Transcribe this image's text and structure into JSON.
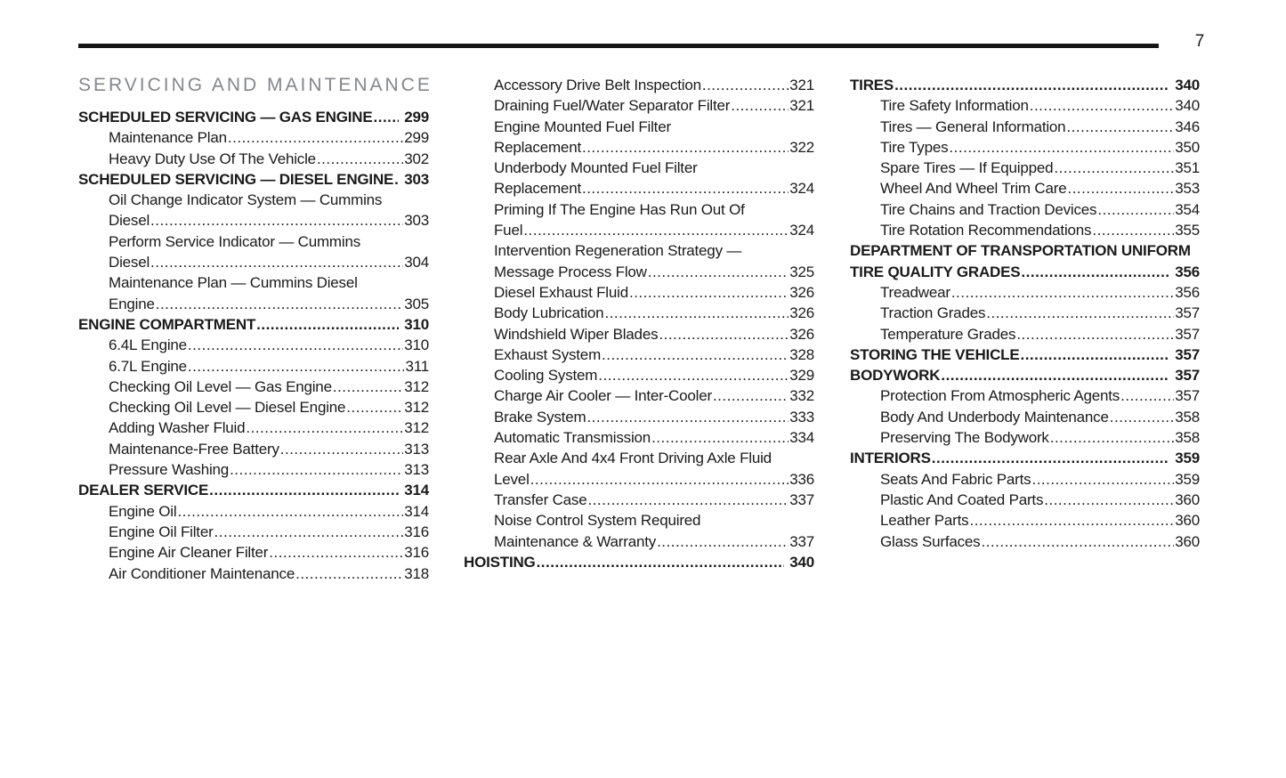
{
  "page": {
    "number": "7"
  },
  "section_title": "SERVICING AND MAINTENANCE",
  "colors": {
    "text": "#1a1a1a",
    "title_gray": "#85878a",
    "rule": "#161616",
    "background": "#ffffff"
  },
  "columns": [
    {
      "lines": [
        {
          "text": "SCHEDULED SERVICING — GAS ENGINE",
          "page": "299",
          "bold": true,
          "indent": false
        },
        {
          "text": "Maintenance Plan",
          "page": "299",
          "bold": false,
          "indent": true
        },
        {
          "text": "Heavy Duty Use Of The Vehicle",
          "page": "302",
          "bold": false,
          "indent": true
        },
        {
          "text": "SCHEDULED SERVICING — DIESEL ENGINE",
          "page": "303",
          "bold": true,
          "indent": false
        },
        {
          "text": "Oil Change Indicator System — Cummins",
          "page": "",
          "bold": false,
          "indent": true
        },
        {
          "text": "Diesel",
          "page": "303",
          "bold": false,
          "indent": true
        },
        {
          "text": "Perform Service Indicator — Cummins",
          "page": "",
          "bold": false,
          "indent": true
        },
        {
          "text": "Diesel",
          "page": "304",
          "bold": false,
          "indent": true
        },
        {
          "text": "Maintenance Plan — Cummins Diesel",
          "page": "",
          "bold": false,
          "indent": true
        },
        {
          "text": "Engine",
          "page": "305",
          "bold": false,
          "indent": true
        },
        {
          "text": "ENGINE COMPARTMENT",
          "page": "310",
          "bold": true,
          "indent": false
        },
        {
          "text": "6.4L Engine",
          "page": "310",
          "bold": false,
          "indent": true
        },
        {
          "text": "6.7L Engine",
          "page": "311",
          "bold": false,
          "indent": true
        },
        {
          "text": "Checking Oil Level — Gas Engine",
          "page": "312",
          "bold": false,
          "indent": true
        },
        {
          "text": "Checking Oil Level — Diesel Engine",
          "page": "312",
          "bold": false,
          "indent": true
        },
        {
          "text": "Adding Washer Fluid",
          "page": "312",
          "bold": false,
          "indent": true
        },
        {
          "text": "Maintenance-Free Battery",
          "page": "313",
          "bold": false,
          "indent": true
        },
        {
          "text": "Pressure Washing",
          "page": "313",
          "bold": false,
          "indent": true
        },
        {
          "text": "DEALER SERVICE",
          "page": "314",
          "bold": true,
          "indent": false
        },
        {
          "text": "Engine Oil",
          "page": "314",
          "bold": false,
          "indent": true
        },
        {
          "text": "Engine Oil Filter",
          "page": "316",
          "bold": false,
          "indent": true
        },
        {
          "text": "Engine Air Cleaner Filter",
          "page": "316",
          "bold": false,
          "indent": true
        },
        {
          "text": "Air Conditioner Maintenance",
          "page": "318",
          "bold": false,
          "indent": true
        }
      ]
    },
    {
      "lines": [
        {
          "text": "Accessory Drive Belt Inspection",
          "page": "321",
          "bold": false,
          "indent": true
        },
        {
          "text": "Draining Fuel/Water Separator Filter",
          "page": "321",
          "bold": false,
          "indent": true
        },
        {
          "text": "Engine Mounted Fuel Filter",
          "page": "",
          "bold": false,
          "indent": true
        },
        {
          "text": "Replacement",
          "page": "322",
          "bold": false,
          "indent": true
        },
        {
          "text": "Underbody Mounted Fuel Filter",
          "page": "",
          "bold": false,
          "indent": true
        },
        {
          "text": "Replacement",
          "page": "324",
          "bold": false,
          "indent": true
        },
        {
          "text": "Priming If The Engine Has Run Out Of",
          "page": "",
          "bold": false,
          "indent": true
        },
        {
          "text": "Fuel",
          "page": "324",
          "bold": false,
          "indent": true
        },
        {
          "text": "Intervention Regeneration Strategy —",
          "page": "",
          "bold": false,
          "indent": true
        },
        {
          "text": "Message Process Flow",
          "page": "325",
          "bold": false,
          "indent": true
        },
        {
          "text": "Diesel Exhaust Fluid",
          "page": "326",
          "bold": false,
          "indent": true
        },
        {
          "text": "Body Lubrication",
          "page": "326",
          "bold": false,
          "indent": true
        },
        {
          "text": "Windshield Wiper Blades",
          "page": "326",
          "bold": false,
          "indent": true
        },
        {
          "text": "Exhaust System",
          "page": "328",
          "bold": false,
          "indent": true
        },
        {
          "text": "Cooling System",
          "page": "329",
          "bold": false,
          "indent": true
        },
        {
          "text": "Charge Air Cooler — Inter-Cooler",
          "page": "332",
          "bold": false,
          "indent": true
        },
        {
          "text": "Brake System",
          "page": "333",
          "bold": false,
          "indent": true
        },
        {
          "text": "Automatic Transmission",
          "page": "334",
          "bold": false,
          "indent": true
        },
        {
          "text": "Rear Axle And 4x4 Front Driving Axle Fluid",
          "page": "",
          "bold": false,
          "indent": true
        },
        {
          "text": "Level",
          "page": "336",
          "bold": false,
          "indent": true
        },
        {
          "text": "Transfer Case",
          "page": "337",
          "bold": false,
          "indent": true
        },
        {
          "text": "Noise Control System Required",
          "page": "",
          "bold": false,
          "indent": true
        },
        {
          "text": "Maintenance & Warranty",
          "page": "337",
          "bold": false,
          "indent": true
        },
        {
          "text": "HOISTING",
          "page": "340",
          "bold": true,
          "indent": false
        }
      ]
    },
    {
      "lines": [
        {
          "text": "TIRES",
          "page": "340",
          "bold": true,
          "indent": false
        },
        {
          "text": "Tire Safety Information",
          "page": "340",
          "bold": false,
          "indent": true
        },
        {
          "text": "Tires — General Information",
          "page": "346",
          "bold": false,
          "indent": true
        },
        {
          "text": "Tire Types",
          "page": "350",
          "bold": false,
          "indent": true
        },
        {
          "text": "Spare Tires — If Equipped",
          "page": "351",
          "bold": false,
          "indent": true
        },
        {
          "text": "Wheel And Wheel Trim Care",
          "page": "353",
          "bold": false,
          "indent": true
        },
        {
          "text": "Tire Chains and Traction Devices",
          "page": "354",
          "bold": false,
          "indent": true
        },
        {
          "text": "Tire Rotation Recommendations",
          "page": "355",
          "bold": false,
          "indent": true
        },
        {
          "text": "DEPARTMENT OF TRANSPORTATION UNIFORM",
          "page": "",
          "bold": true,
          "indent": false
        },
        {
          "text": "TIRE QUALITY GRADES",
          "page": "356",
          "bold": true,
          "indent": false
        },
        {
          "text": "Treadwear",
          "page": "356",
          "bold": false,
          "indent": true
        },
        {
          "text": "Traction Grades",
          "page": "357",
          "bold": false,
          "indent": true
        },
        {
          "text": "Temperature Grades",
          "page": "357",
          "bold": false,
          "indent": true
        },
        {
          "text": "STORING THE VEHICLE",
          "page": "357",
          "bold": true,
          "indent": false
        },
        {
          "text": "BODYWORK",
          "page": "357",
          "bold": true,
          "indent": false
        },
        {
          "text": "Protection From Atmospheric Agents",
          "page": "357",
          "bold": false,
          "indent": true
        },
        {
          "text": "Body And Underbody Maintenance",
          "page": "358",
          "bold": false,
          "indent": true
        },
        {
          "text": "Preserving The Bodywork",
          "page": "358",
          "bold": false,
          "indent": true
        },
        {
          "text": "INTERIORS",
          "page": "359",
          "bold": true,
          "indent": false
        },
        {
          "text": "Seats And Fabric Parts",
          "page": "359",
          "bold": false,
          "indent": true
        },
        {
          "text": "Plastic And Coated Parts",
          "page": "360",
          "bold": false,
          "indent": true
        },
        {
          "text": "Leather Parts",
          "page": "360",
          "bold": false,
          "indent": true
        },
        {
          "text": "Glass Surfaces",
          "page": "360",
          "bold": false,
          "indent": true
        }
      ]
    }
  ]
}
